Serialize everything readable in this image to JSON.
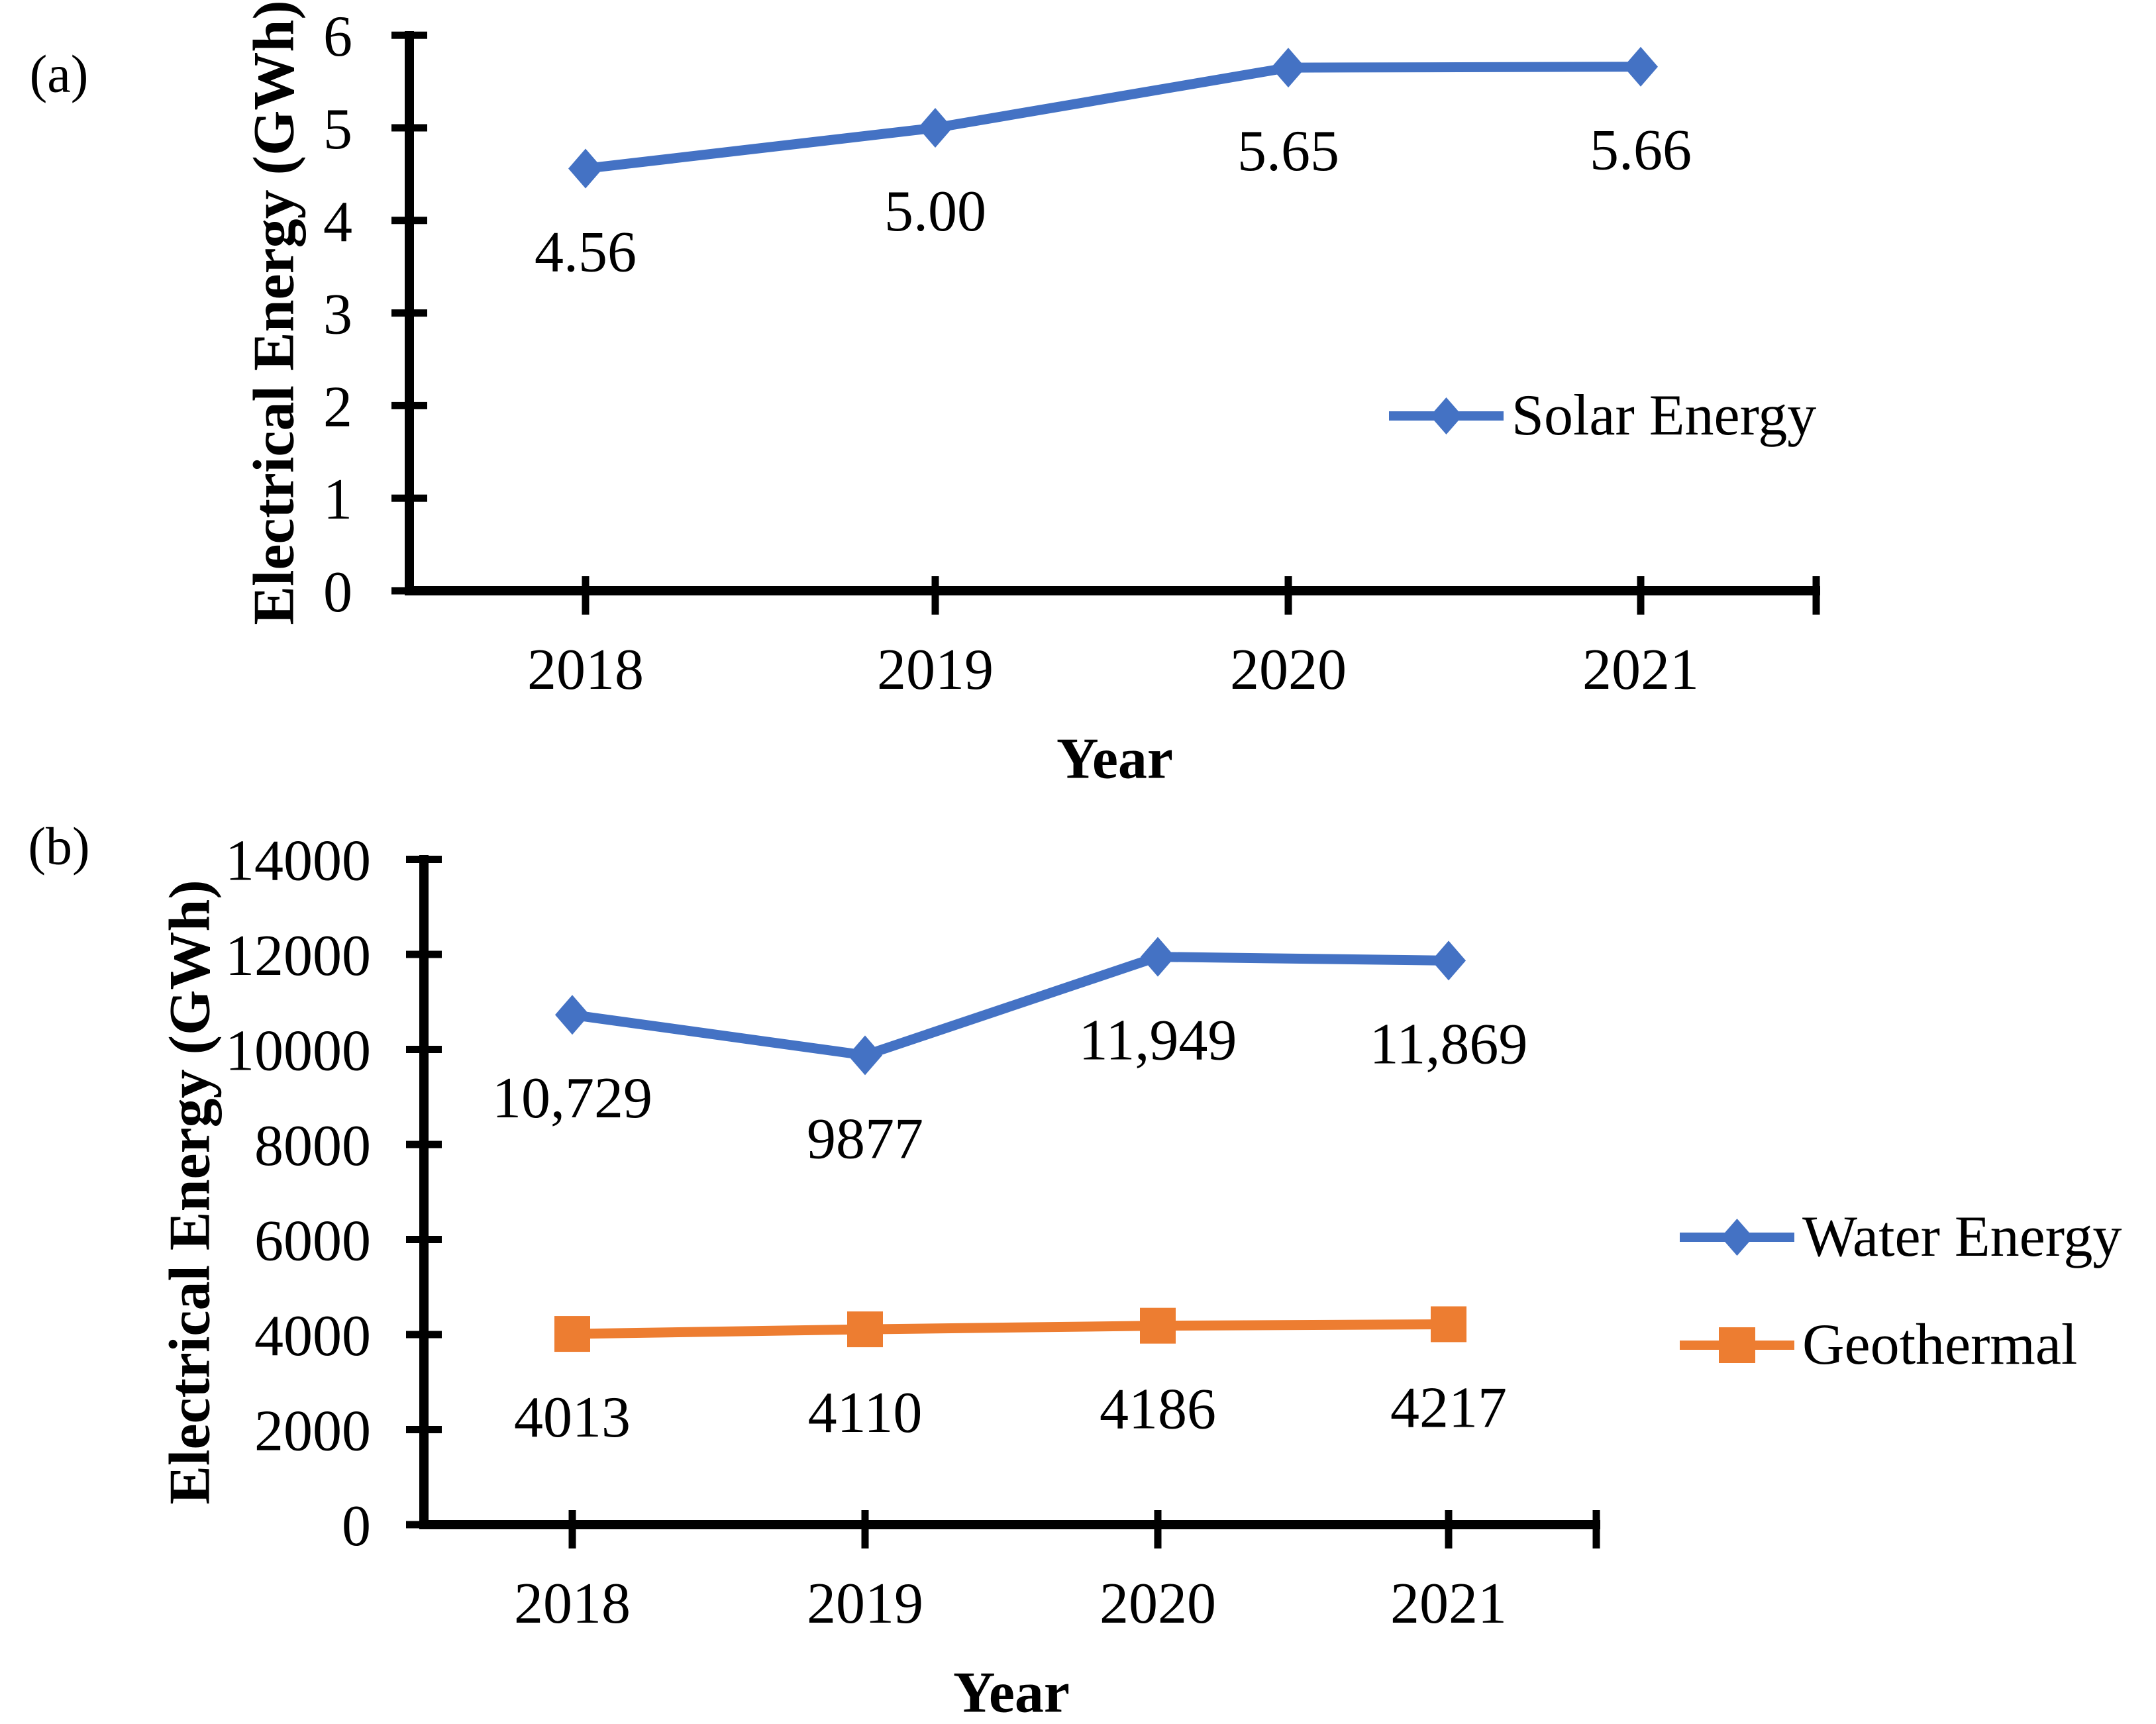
{
  "figure": {
    "background": "#ffffff",
    "text_color": "#000000",
    "axis_color": "#000000"
  },
  "chart_data": [
    {
      "type": "line",
      "panel_label": "(a)",
      "xlabel": "Year",
      "ylabel": "Electrical Energy (GWh)",
      "categories": [
        "2018",
        "2019",
        "2020",
        "2021"
      ],
      "y_axis": {
        "min": 0,
        "max": 6,
        "tick_step": 1,
        "tick_labels": [
          "0",
          "1",
          "2",
          "3",
          "4",
          "5",
          "6"
        ]
      },
      "grid": false,
      "legend_position": "right-middle",
      "series": [
        {
          "name": "Solar Energy",
          "color": "#4472C4",
          "marker": "diamond",
          "values": [
            4.56,
            5.0,
            5.65,
            5.66
          ],
          "data_labels": [
            "4.56",
            "5.00",
            "5.65",
            "5.66"
          ]
        }
      ]
    },
    {
      "type": "line",
      "panel_label": "(b)",
      "xlabel": "Year",
      "ylabel": "Electrical Energy (GWh)",
      "categories": [
        "2018",
        "2019",
        "2020",
        "2021"
      ],
      "y_axis": {
        "min": 0,
        "max": 14000,
        "tick_step": 2000,
        "tick_labels": [
          "0",
          "2000",
          "4000",
          "6000",
          "8000",
          "10000",
          "12000",
          "14000"
        ]
      },
      "grid": false,
      "legend_position": "right-middle",
      "series": [
        {
          "name": "Water Energy",
          "color": "#4472C4",
          "marker": "diamond",
          "values": [
            10729,
            9877,
            11949,
            11869
          ],
          "data_labels": [
            "10,729",
            "9877",
            "11,949",
            "11,869"
          ]
        },
        {
          "name": "Geothermal",
          "color": "#ED7D31",
          "marker": "square",
          "values": [
            4013,
            4110,
            4186,
            4217
          ],
          "data_labels": [
            "4013",
            "4110",
            "4186",
            "4217"
          ]
        }
      ]
    }
  ]
}
